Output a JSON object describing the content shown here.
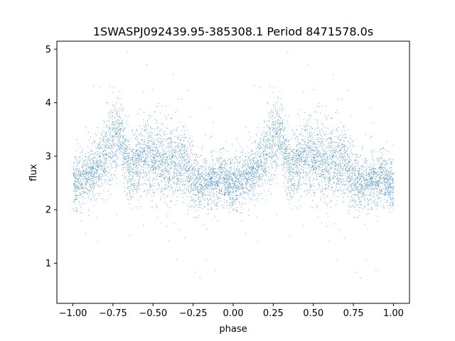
{
  "chart_data": {
    "type": "scatter",
    "title": "1SWASPJ092439.95-385308.1 Period 8471578.0s",
    "xlabel": "phase",
    "ylabel": "flux",
    "xlim": [
      -1.1,
      1.1
    ],
    "ylim": [
      0.25,
      5.15
    ],
    "xticks": [
      -1.0,
      -0.75,
      -0.5,
      -0.25,
      0.0,
      0.25,
      0.5,
      0.75,
      1.0
    ],
    "xtick_labels": [
      "−1.00",
      "−0.75",
      "−0.50",
      "−0.25",
      "0.00",
      "0.25",
      "0.50",
      "0.75",
      "1.00"
    ],
    "yticks": [
      1,
      2,
      3,
      4,
      5
    ],
    "ytick_labels": [
      "1",
      "2",
      "3",
      "4",
      "5"
    ],
    "grid": false,
    "marker_color": "#1f77b4",
    "n_points_approx": 9000,
    "series": [
      {
        "phase": [
          -1.0,
          -0.95,
          -0.9,
          -0.85,
          -0.8,
          -0.75,
          -0.7,
          -0.65,
          -0.6,
          -0.55,
          -0.5,
          -0.45,
          -0.4,
          -0.35,
          -0.3,
          -0.25,
          -0.2,
          -0.15,
          -0.1,
          -0.05,
          0.0
        ],
        "median_flux": [
          2.5,
          2.55,
          2.65,
          2.8,
          3.1,
          3.3,
          3.4,
          2.7,
          2.9,
          3.0,
          3.0,
          2.9,
          2.85,
          2.9,
          2.85,
          2.6,
          2.5,
          2.5,
          2.6,
          2.55,
          2.4
        ],
        "flux_spread": [
          0.35,
          0.3,
          0.3,
          0.35,
          0.45,
          0.45,
          0.4,
          0.4,
          0.35,
          0.45,
          0.45,
          0.5,
          0.45,
          0.45,
          0.4,
          0.35,
          0.35,
          0.3,
          0.3,
          0.3,
          0.3
        ]
      }
    ]
  }
}
